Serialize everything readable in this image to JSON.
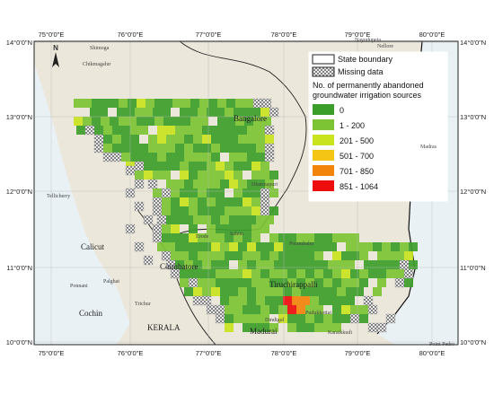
{
  "map": {
    "north_arrow": "N",
    "longitude_labels": [
      "75°0'0\"E",
      "76°0'0\"E",
      "77°0'0\"E",
      "78°0'0\"E",
      "79°0'0\"E",
      "80°0'0\"E"
    ],
    "latitude_labels": [
      "14°0'0\"N",
      "13°0'0\"N",
      "12°0'0\"N",
      "11°0'0\"N",
      "10°0'0\"N"
    ],
    "legend": {
      "boundary_label": "State boundary",
      "missing_label": "Missing data",
      "title": [
        "No. of permanently abandoned",
        "groundwater irrigation sources"
      ],
      "classes": [
        {
          "label": "0",
          "color": "#3c9e2a"
        },
        {
          "label": "1 - 200",
          "color": "#7cc433"
        },
        {
          "label": "201 - 500",
          "color": "#c9e41f"
        },
        {
          "label": "501 - 700",
          "color": "#f4c514"
        },
        {
          "label": "701 - 850",
          "color": "#f2830b"
        },
        {
          "label": "851 - 1064",
          "color": "#ee0d0d"
        }
      ]
    },
    "places": [
      "Shimoga",
      "Chikmagalur",
      "Bangalore",
      "Calicut",
      "Tellicherry",
      "Coimbatore",
      "Tiruchirappalli",
      "Madurai",
      "Cochin",
      "KERALA",
      "Nellore",
      "Dharmapuri",
      "Salem",
      "Erode",
      "Palghat",
      "Ponnani",
      "Trichur",
      "Dindigul",
      "Karaikkudi",
      "Nayudupeta",
      "Madras",
      "Perambalur",
      "Pudukkottai",
      "Point Pedro"
    ]
  }
}
